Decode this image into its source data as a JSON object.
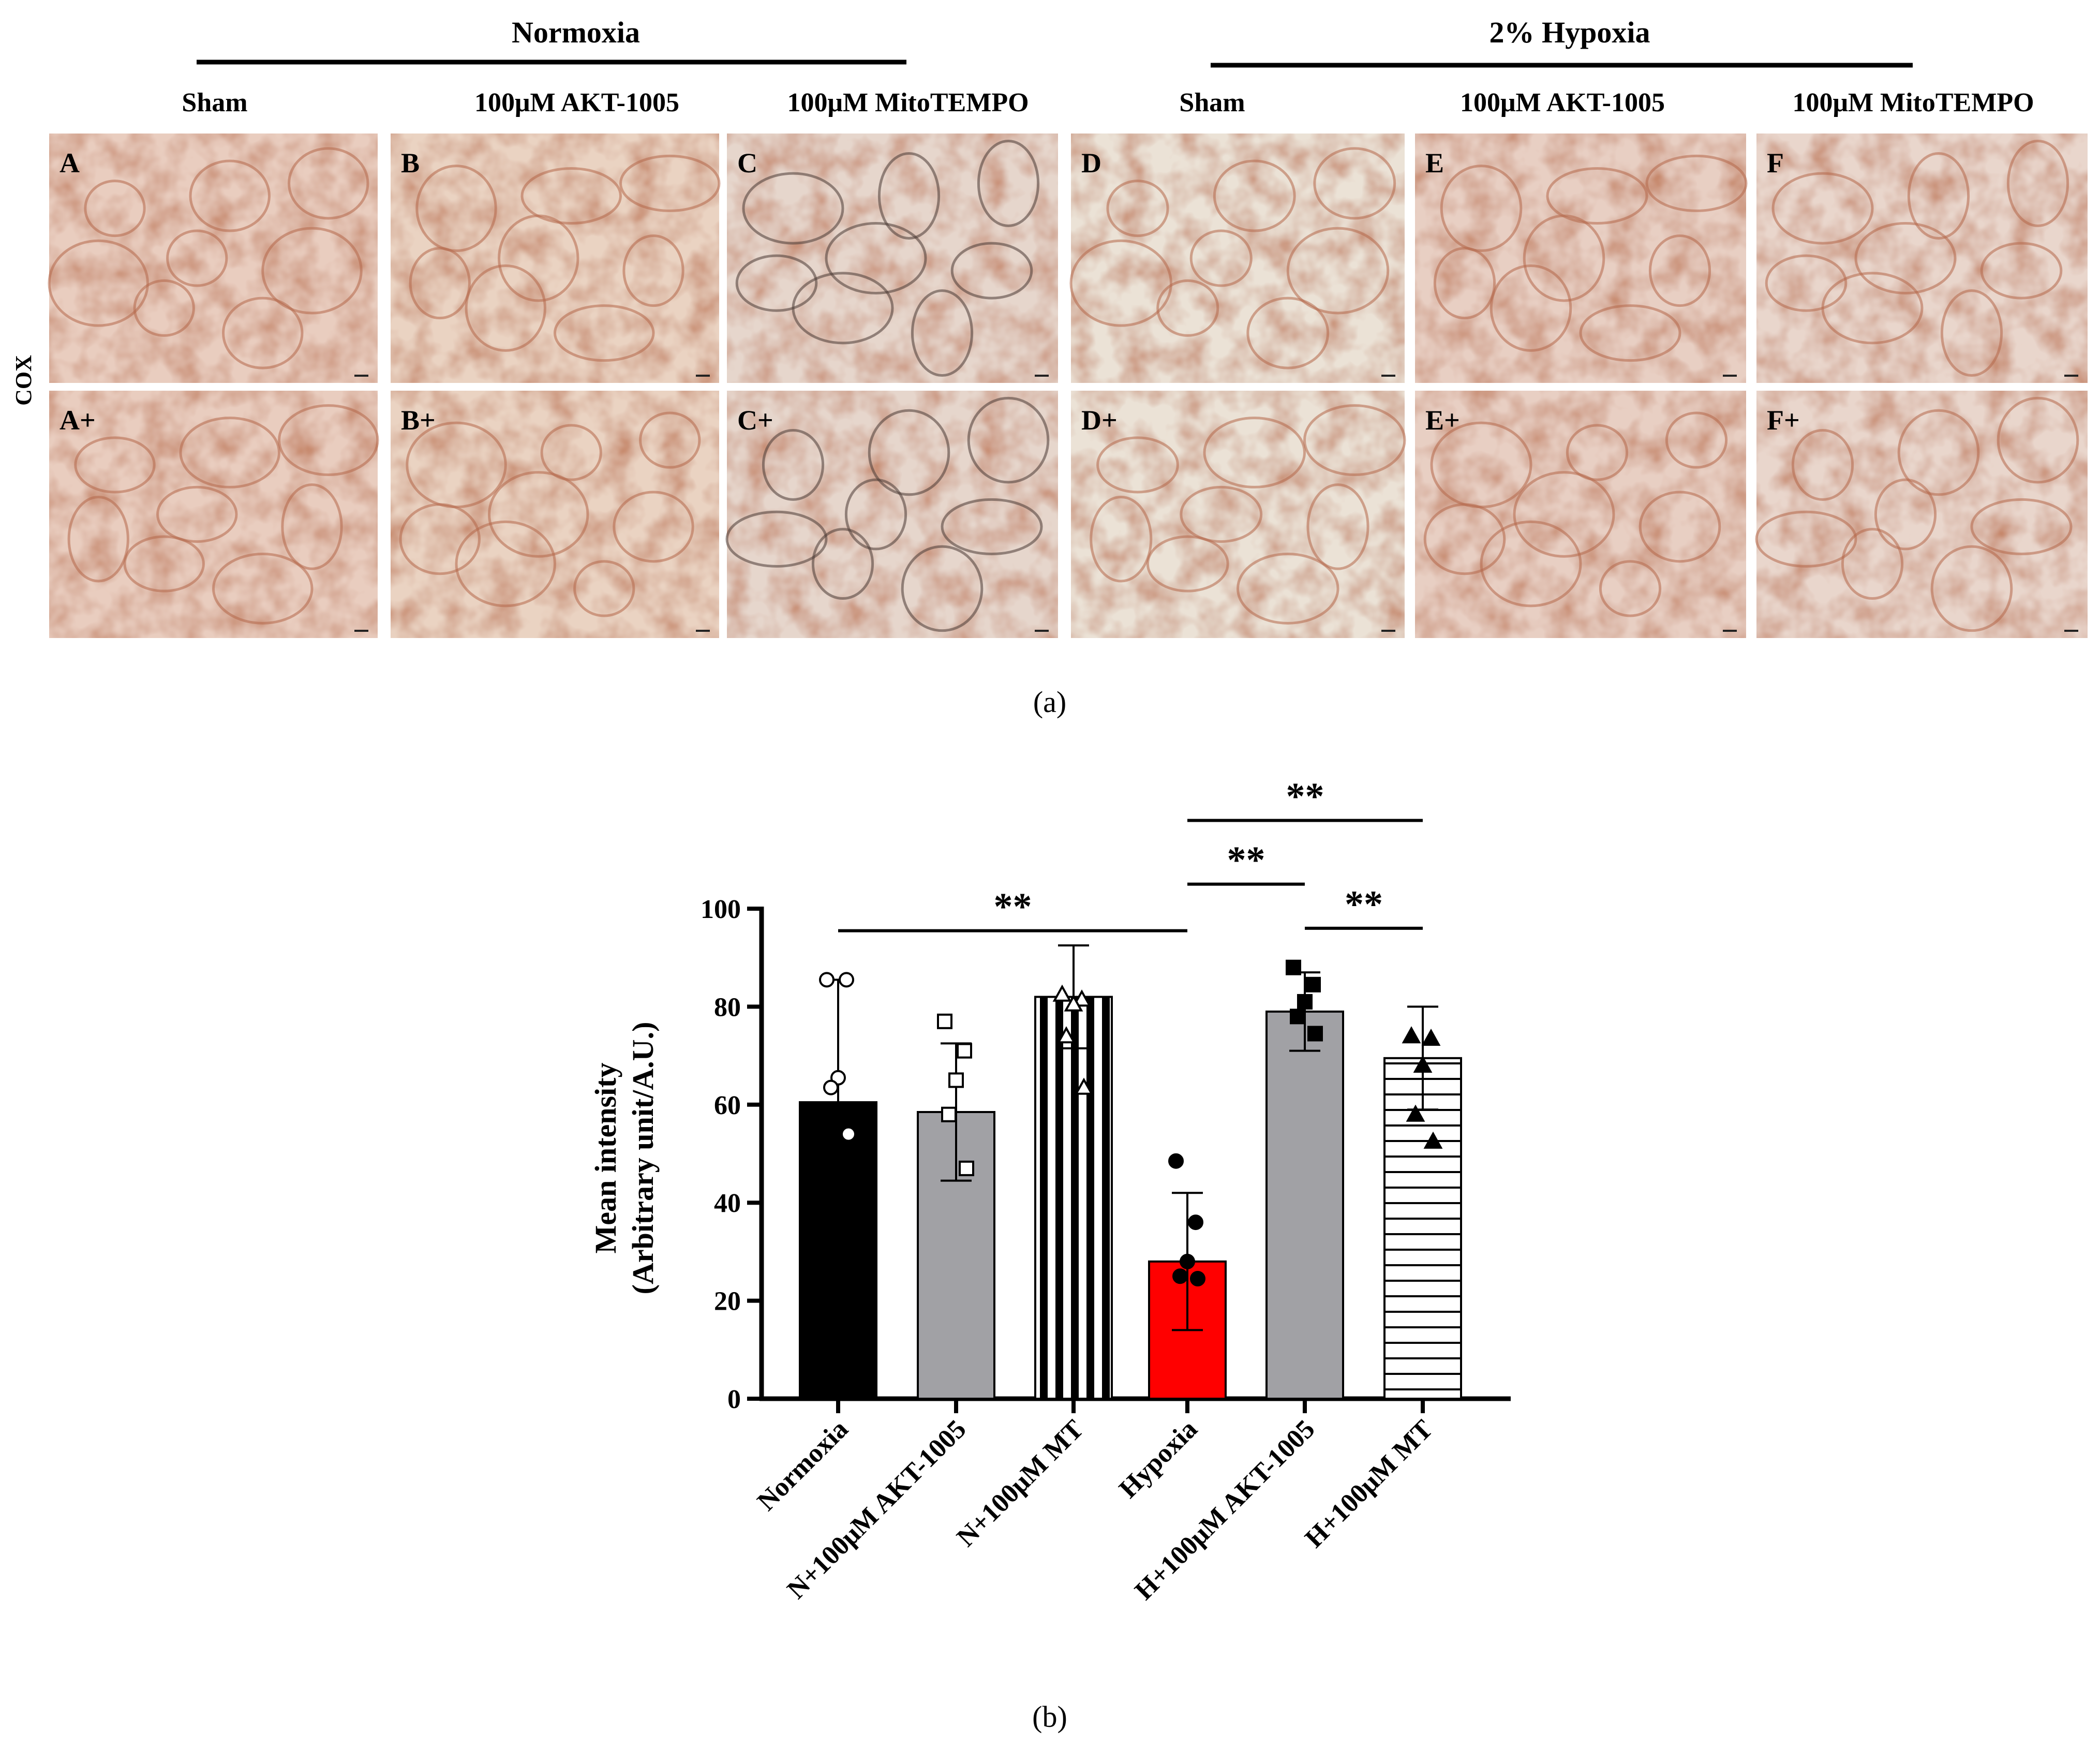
{
  "figure": {
    "panel_a_label": "(a)",
    "panel_b_label": "(b)",
    "group_headers": [
      "Normoxia",
      "2% Hypoxia"
    ],
    "column_headers": [
      "Sham",
      "100μM AKT-1005",
      "100μM MitoTEMPO",
      "Sham",
      "100μM AKT-1005",
      "100μM MitoTEMPO"
    ],
    "row_label": "COX",
    "tile_labels_top": [
      "A",
      "B",
      "C",
      "D",
      "E",
      "F"
    ],
    "tile_labels_bottom": [
      "A+",
      "B+",
      "C+",
      "D+",
      "E+",
      "F+"
    ],
    "tile_tints": [
      "#e9cdbf",
      "#ead3c2",
      "#e6d6cc",
      "#ebe2d6",
      "#e8cfc3",
      "#e9d6cc"
    ]
  },
  "chart_data": {
    "type": "bar",
    "ylabel_line1": "Mean intensity",
    "ylabel_line2": "(Arbitrary unit/A.U.)",
    "ylim": [
      0,
      100
    ],
    "yticks": [
      "0",
      "20",
      "40",
      "60",
      "80",
      "100"
    ],
    "categories": [
      "Normoxia",
      "N+100μM AKT-1005",
      "N+100μM MT",
      "Hypoxia",
      "H+100μM AKT-1005",
      "H+100μM MT"
    ],
    "values": [
      60.5,
      58.5,
      82,
      28,
      79,
      69.5
    ],
    "errors": [
      25,
      14,
      10.5,
      14,
      8,
      10.5
    ],
    "points": [
      [
        85.5,
        85.5,
        65.5,
        63.5,
        54
      ],
      [
        77,
        71,
        65,
        58,
        47
      ],
      [
        82.5,
        81.5,
        80.5,
        74,
        63.5
      ],
      [
        48.5,
        36,
        28,
        25,
        24.5
      ],
      [
        88,
        84.5,
        81,
        78,
        74.5
      ],
      [
        74,
        73.5,
        68,
        58,
        52.5
      ]
    ],
    "fills": [
      "#000000",
      "#a1a1a5",
      "vertical-stripes",
      "#ff0000",
      "#a1a1a5",
      "horizontal-stripes"
    ],
    "markers": [
      "open-circle",
      "open-square",
      "open-triangle",
      "filled-circle",
      "filled-square",
      "filled-triangle"
    ],
    "significance": [
      {
        "from": 0,
        "to": 3,
        "y": 95.5,
        "label": "**"
      },
      {
        "from": 3,
        "to": 4,
        "y": 105,
        "label": "**"
      },
      {
        "from": 4,
        "to": 5,
        "y": 96,
        "label": "**"
      },
      {
        "from": 3,
        "to": 5,
        "y": 118,
        "label": "**"
      }
    ]
  }
}
